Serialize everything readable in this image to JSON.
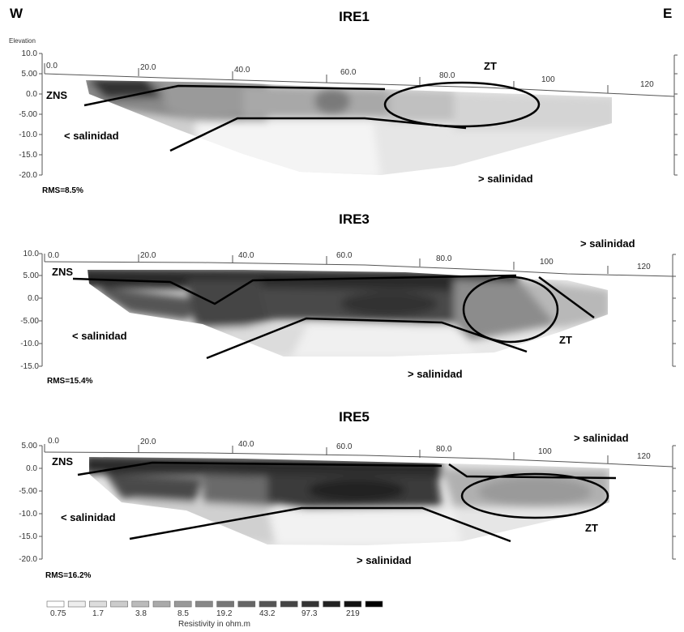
{
  "header": {
    "west": "W",
    "east": "E"
  },
  "sections": [
    {
      "title": "IRE1",
      "y_label": "Elevation",
      "y_ticks": [
        "10.0",
        "5.00",
        "0.0",
        "-5.00",
        "-10.0",
        "-15.0",
        "-20.0"
      ],
      "x_ticks": [
        "0.0",
        "20.0",
        "40.0",
        "60.0",
        "80.0",
        "100",
        "120"
      ],
      "rms": "RMS=8.5%",
      "labels": {
        "zns": "ZNS",
        "zt": "ZT",
        "low_salinity": "< salinidad",
        "high_salinity": "> salinidad"
      }
    },
    {
      "title": "IRE3",
      "y_label": "",
      "y_ticks": [
        "10.0",
        "5.00",
        "0.0",
        "-5.00",
        "-10.0",
        "-15.0"
      ],
      "x_ticks": [
        "0.0",
        "20.0",
        "40.0",
        "60.0",
        "80.0",
        "100",
        "120"
      ],
      "rms": "RMS=15.4%",
      "labels": {
        "zns": "ZNS",
        "zt": "ZT",
        "low_salinity": "< salinidad",
        "high_salinity": "> salinidad",
        "high_salinity_top": "> salinidad"
      }
    },
    {
      "title": "IRE5",
      "y_label": "",
      "y_ticks": [
        "5.00",
        "0.0",
        "-5.00",
        "-10.0",
        "-15.0",
        "-20.0"
      ],
      "x_ticks": [
        "0.0",
        "20.0",
        "40.0",
        "60.0",
        "80.0",
        "100",
        "120"
      ],
      "rms": "RMS=16.2%",
      "labels": {
        "zns": "ZNS",
        "zt": "ZT",
        "low_salinity": "< salinidad",
        "high_salinity": "> salinidad",
        "high_salinity_top": "> salinidad"
      }
    }
  ],
  "legend": {
    "values": [
      "0.75",
      "1.7",
      "3.8",
      "8.5",
      "19.2",
      "43.2",
      "97.3",
      "219"
    ],
    "title": "Resistivity in ohm.m",
    "colors": [
      "#ffffff",
      "#eeeeee",
      "#dddddd",
      "#cccccc",
      "#bbbbbb",
      "#aaaaaa",
      "#999999",
      "#888888",
      "#777777",
      "#666666",
      "#555555",
      "#444444",
      "#333333",
      "#222222",
      "#111111",
      "#000000"
    ]
  }
}
